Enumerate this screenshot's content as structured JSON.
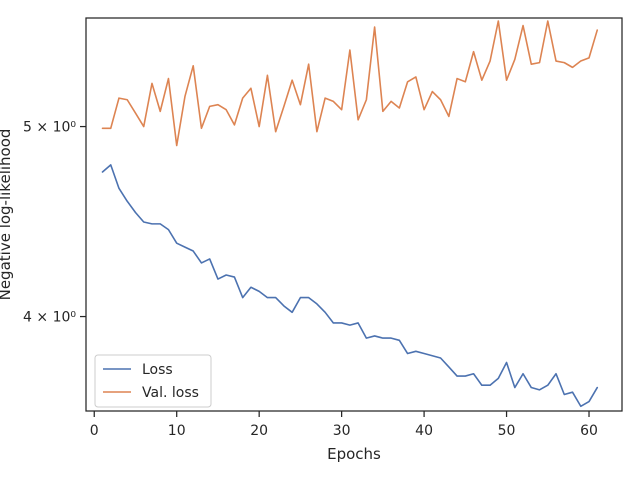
{
  "chart_data": {
    "type": "line",
    "xlabel": "Epochs",
    "ylabel": "Negative log-likelihood",
    "yscale": "log",
    "xlim": [
      -1.0,
      64.0
    ],
    "ylim": [
      3.58,
      5.68
    ],
    "xticks": [
      0,
      10,
      20,
      30,
      40,
      50,
      60
    ],
    "yticks": [
      {
        "value": 4,
        "label": "4 × 10⁰"
      },
      {
        "value": 5,
        "label": "5 × 10⁰"
      }
    ],
    "legend_position": "lower-left",
    "grid": false,
    "x": [
      1,
      2,
      3,
      4,
      5,
      6,
      7,
      8,
      9,
      10,
      11,
      12,
      13,
      14,
      15,
      16,
      17,
      18,
      19,
      20,
      21,
      22,
      23,
      24,
      25,
      26,
      27,
      28,
      29,
      30,
      31,
      32,
      33,
      34,
      35,
      36,
      37,
      38,
      39,
      40,
      41,
      42,
      43,
      44,
      45,
      46,
      47,
      48,
      49,
      50,
      51,
      52,
      53,
      54,
      55,
      56,
      57,
      58,
      59,
      60,
      61
    ],
    "series": [
      {
        "name": "Loss",
        "color": "#4c72b0",
        "values": [
          4.74,
          4.78,
          4.65,
          4.58,
          4.52,
          4.47,
          4.46,
          4.46,
          4.43,
          4.36,
          4.34,
          4.32,
          4.26,
          4.28,
          4.18,
          4.2,
          4.19,
          4.09,
          4.14,
          4.12,
          4.09,
          4.09,
          4.05,
          4.02,
          4.09,
          4.09,
          4.06,
          4.02,
          3.97,
          3.97,
          3.96,
          3.97,
          3.9,
          3.91,
          3.9,
          3.9,
          3.89,
          3.83,
          3.84,
          3.83,
          3.82,
          3.81,
          3.77,
          3.73,
          3.73,
          3.74,
          3.69,
          3.69,
          3.72,
          3.79,
          3.68,
          3.74,
          3.68,
          3.67,
          3.69,
          3.74,
          3.65,
          3.66,
          3.6,
          3.62,
          3.68
        ]
      },
      {
        "name": "Val. loss",
        "color": "#dd8452",
        "values": [
          4.99,
          4.99,
          5.17,
          5.16,
          5.08,
          5.0,
          5.26,
          5.09,
          5.29,
          4.89,
          5.18,
          5.37,
          4.99,
          5.12,
          5.13,
          5.1,
          5.01,
          5.17,
          5.23,
          5.0,
          5.31,
          4.97,
          5.12,
          5.28,
          5.13,
          5.38,
          4.97,
          5.17,
          5.15,
          5.1,
          5.47,
          5.04,
          5.16,
          5.62,
          5.09,
          5.15,
          5.11,
          5.27,
          5.3,
          5.1,
          5.21,
          5.16,
          5.06,
          5.29,
          5.27,
          5.46,
          5.28,
          5.4,
          5.66,
          5.28,
          5.41,
          5.63,
          5.38,
          5.39,
          5.66,
          5.4,
          5.39,
          5.36,
          5.4,
          5.42,
          5.6
        ]
      }
    ]
  }
}
